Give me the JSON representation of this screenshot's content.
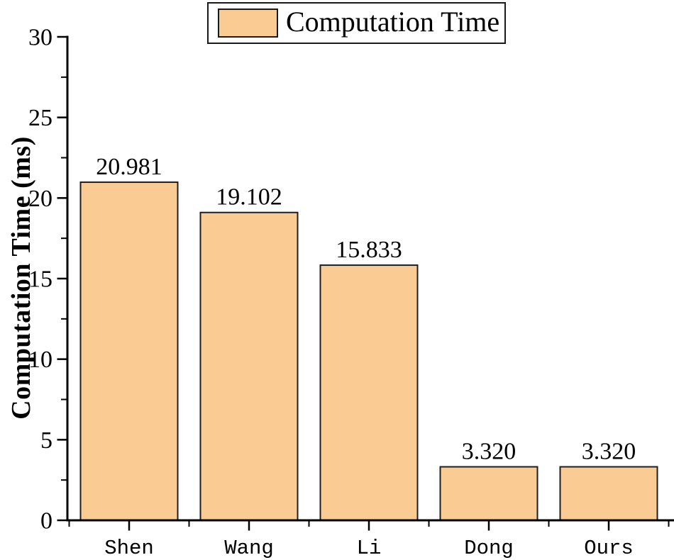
{
  "chart_data": {
    "type": "bar",
    "title": "",
    "categories": [
      "Shen",
      "Wang",
      "Li",
      "Dong",
      "Ours"
    ],
    "values": [
      20.981,
      19.102,
      15.833,
      3.32,
      3.32
    ],
    "value_labels": [
      "20.981",
      "19.102",
      "15.833",
      "3.320",
      "3.320"
    ],
    "xlabel": "",
    "ylabel": "Computation Time (ms)",
    "ylim": [
      0,
      30
    ],
    "yticks": [
      0,
      5,
      10,
      15,
      20,
      25,
      30
    ],
    "ytick_labels": [
      "0",
      "5",
      "10",
      "15",
      "20",
      "25",
      "30"
    ],
    "y_minor_step": 2.5,
    "grid": false,
    "legend": {
      "label": "Computation Time",
      "position": "top-center"
    },
    "colors": {
      "bar_fill": "#fbcb94",
      "bar_edge": "#1f1f1f",
      "axis": "#000000",
      "text": "#000000",
      "background": "#ffffff"
    }
  }
}
